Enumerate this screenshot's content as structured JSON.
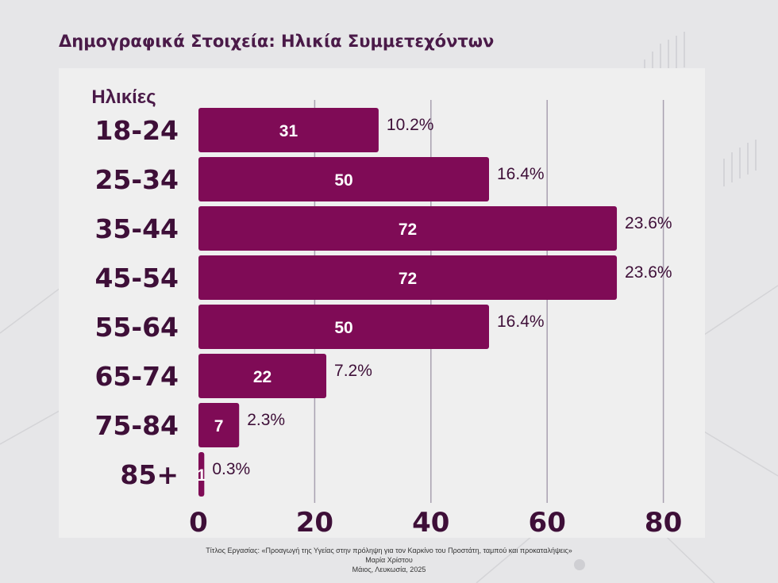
{
  "chart_data": {
    "type": "bar",
    "orientation": "horizontal",
    "title": "Δημογραφικά Στοιχεία: Ηλικία Συμμετεχόντων",
    "ylabel": "Ηλικίες",
    "xlabel": "",
    "categories": [
      "18-24",
      "25-34",
      "35-44",
      "45-54",
      "55-64",
      "65-74",
      "75-84",
      "85+"
    ],
    "values": [
      31,
      50,
      72,
      72,
      50,
      22,
      7,
      1
    ],
    "percent_labels": [
      "10.2%",
      "16.4%",
      "23.6%",
      "23.6%",
      "16.4%",
      "7.2%",
      "2.3%",
      "0.3%"
    ],
    "xticks": [
      0,
      20,
      40,
      60,
      80
    ],
    "xlim": [
      0,
      80
    ],
    "grid": "vertical",
    "bar_color": "#7f0b56",
    "gridline_color": "#a8a0b0"
  },
  "footer": {
    "line1": "Τίτλος Εργασίας: «Προαγωγή της Υγείας στην πρόληψη για τον Καρκίνο του Προστάτη, ταμπού και προκαταλήψεις»",
    "line2": "Μαρία Χρίστου",
    "line3": "Μάιος, Λευκωσία, 2025"
  }
}
